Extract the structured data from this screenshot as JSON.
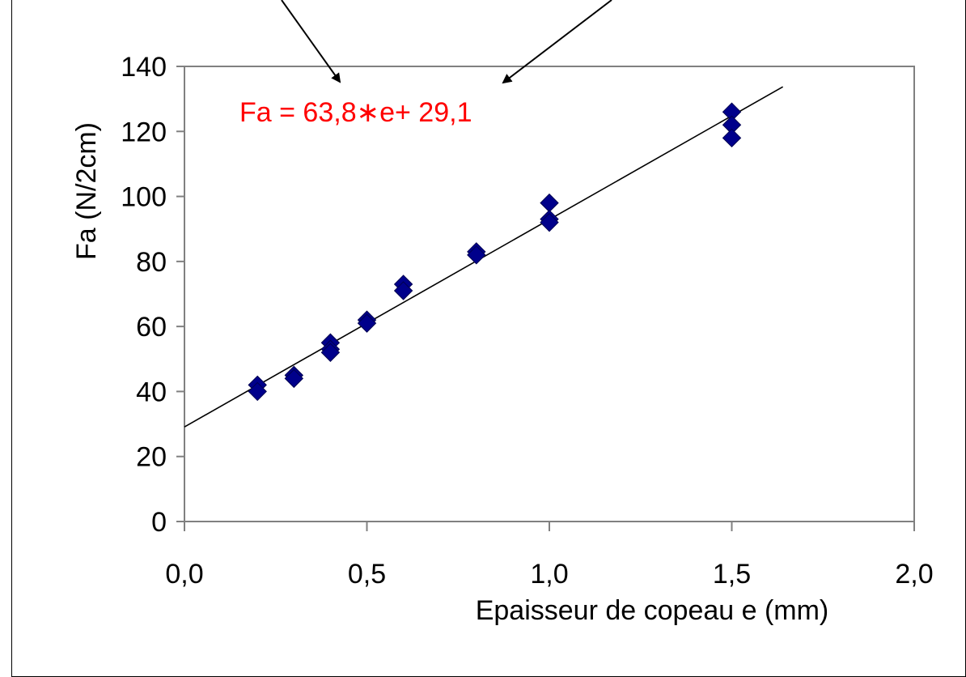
{
  "chart_data": {
    "type": "scatter",
    "title": "",
    "xlabel": "Epaisseur de copeau e (mm)",
    "ylabel": "Fa (N/2cm)",
    "xlim": [
      0,
      2
    ],
    "ylim": [
      0,
      140
    ],
    "x_ticks": [
      "0,0",
      "0,5",
      "1,0",
      "1,5",
      "2,0"
    ],
    "y_ticks": [
      "0",
      "20",
      "40",
      "60",
      "80",
      "100",
      "120",
      "140"
    ],
    "grid": false,
    "series": [
      {
        "marker": "diamond",
        "color": "#00008B",
        "points": [
          {
            "x": 0.2,
            "y": 42
          },
          {
            "x": 0.2,
            "y": 40
          },
          {
            "x": 0.3,
            "y": 45
          },
          {
            "x": 0.3,
            "y": 44
          },
          {
            "x": 0.4,
            "y": 55
          },
          {
            "x": 0.4,
            "y": 53
          },
          {
            "x": 0.4,
            "y": 52
          },
          {
            "x": 0.5,
            "y": 62
          },
          {
            "x": 0.5,
            "y": 61
          },
          {
            "x": 0.6,
            "y": 73
          },
          {
            "x": 0.6,
            "y": 71
          },
          {
            "x": 0.8,
            "y": 83
          },
          {
            "x": 0.8,
            "y": 82
          },
          {
            "x": 1.0,
            "y": 98
          },
          {
            "x": 1.0,
            "y": 93
          },
          {
            "x": 1.0,
            "y": 92
          },
          {
            "x": 1.5,
            "y": 126
          },
          {
            "x": 1.5,
            "y": 122
          },
          {
            "x": 1.5,
            "y": 118
          }
        ]
      }
    ],
    "trendline": {
      "slope": 63.8,
      "intercept": 29.1,
      "x_start": 0,
      "x_end": 1.64,
      "color": "#000000",
      "equation_label": "Fa = 63,8∗e+ 29,1",
      "equation_color": "#FF0000"
    },
    "annotations": [
      {
        "type": "arrow",
        "points_to": "equation coefficient 63,8"
      },
      {
        "type": "arrow",
        "points_to": "equation intercept 29,1"
      }
    ]
  }
}
